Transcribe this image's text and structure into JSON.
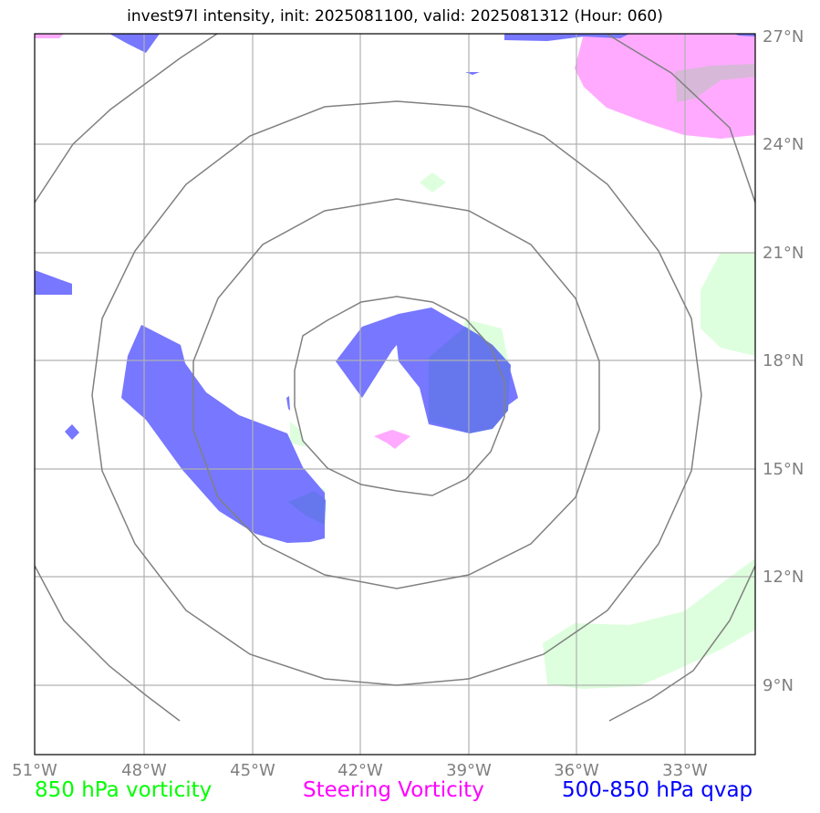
{
  "title": "invest97l intensity, init: 2025081100, valid: 2025081312 (Hour: 060)",
  "map": {
    "lon_range": [
      -51,
      -31
    ],
    "lat_range": [
      7,
      27
    ],
    "grid_lon": [
      -51,
      -48,
      -45,
      -42,
      -39,
      -36,
      -33
    ],
    "grid_lat": [
      9,
      12,
      15,
      18,
      21,
      24,
      27
    ],
    "lon_labels": [
      "51°W",
      "48°W",
      "45°W",
      "42°W",
      "39°W",
      "36°W",
      "33°W"
    ],
    "lat_labels": [
      "9°N",
      "12°N",
      "15°N",
      "18°N",
      "21°N",
      "24°N",
      "27°N"
    ],
    "range_rings_center": [
      -41,
      17
    ],
    "colors": {
      "vorticity_850": "#ddffdd",
      "steering_vorticity": "#ffaaff",
      "qvap": "#6666ff",
      "ring": "#808080",
      "grid": "#b0b0b0"
    }
  },
  "legend": {
    "vorticity_850": "850 hPa vorticity",
    "steering_vorticity": "Steering Vorticity",
    "qvap": "500-850 hPa qvap"
  }
}
